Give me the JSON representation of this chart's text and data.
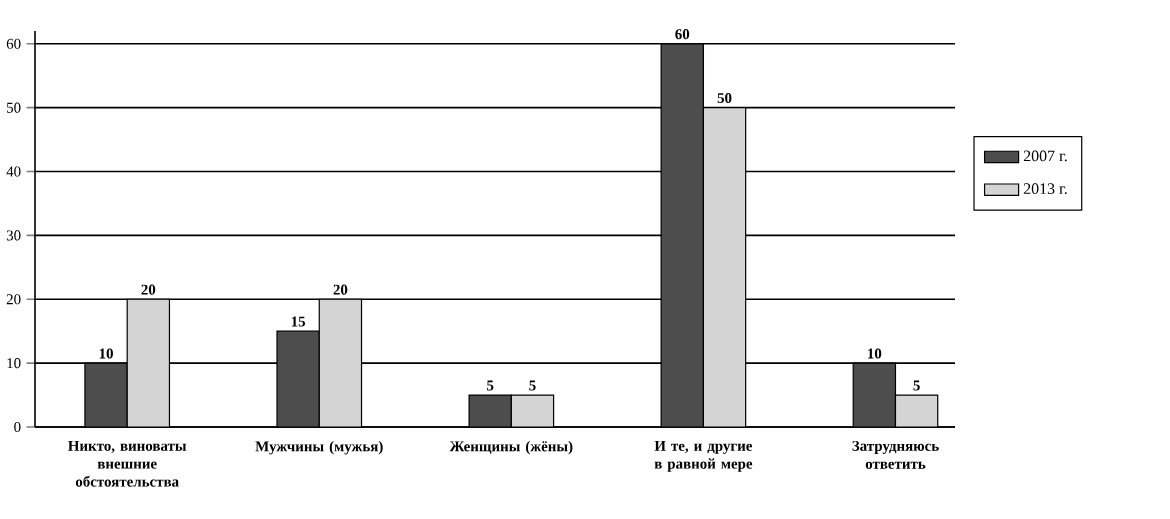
{
  "chart_data": {
    "type": "bar",
    "categories": [
      "Никто, виноваты внешние обстоятельства",
      "Мужчины (мужья)",
      "Женщины (жёны)",
      "И те, и другие в равной мере",
      "Затрудняюсь ответить"
    ],
    "series": [
      {
        "name": "2007 г.",
        "color": "#4d4d4d",
        "values": [
          10,
          15,
          5,
          60,
          10
        ]
      },
      {
        "name": "2013 г.",
        "color": "#d4d4d4",
        "values": [
          20,
          20,
          5,
          50,
          5
        ]
      }
    ],
    "ylim": [
      0,
      62
    ],
    "yticks": [
      0,
      10,
      20,
      30,
      40,
      50,
      60
    ],
    "grid": "y",
    "legend": "right",
    "data_labels": true
  }
}
